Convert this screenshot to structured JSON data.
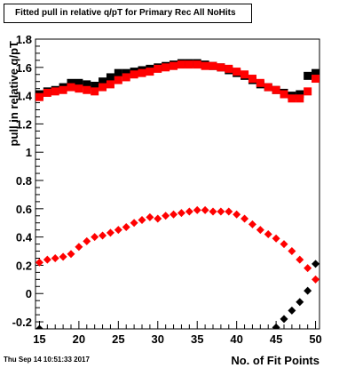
{
  "header": {
    "title": "Fitted pull in relative q/pT for Primary Rec All NoHits"
  },
  "footer": {
    "datestamp": "Thu Sep 14 10:51:33 2017"
  },
  "chart_data": {
    "type": "scatter",
    "xlabel": "No. of Fit Points",
    "ylabel": "pull in relative q/pT",
    "xlim": [
      14.5,
      50.5
    ],
    "ylim": [
      -0.25,
      1.8
    ],
    "x_ticks": [
      15,
      20,
      25,
      30,
      35,
      40,
      45,
      50
    ],
    "y_ticks": [
      -0.2,
      0,
      0.2,
      0.4,
      0.6,
      0.8,
      1,
      1.2,
      1.4,
      1.6,
      1.8
    ],
    "grid": false,
    "series": [
      {
        "name": "",
        "marker": "square",
        "color": "#000000",
        "x": [
          15,
          16,
          17,
          18,
          19,
          20,
          21,
          22,
          23,
          24,
          25,
          26,
          27,
          28,
          29,
          30,
          31,
          32,
          33,
          34,
          35,
          36,
          37,
          38,
          39,
          40,
          41,
          42,
          43,
          44,
          45,
          46,
          47,
          48,
          49,
          50
        ],
        "y": [
          1.41,
          1.43,
          1.44,
          1.46,
          1.49,
          1.49,
          1.48,
          1.47,
          1.5,
          1.53,
          1.56,
          1.56,
          1.57,
          1.58,
          1.59,
          1.6,
          1.61,
          1.62,
          1.63,
          1.63,
          1.63,
          1.62,
          1.61,
          1.6,
          1.58,
          1.56,
          1.54,
          1.51,
          1.48,
          1.46,
          1.44,
          1.42,
          1.4,
          1.41,
          1.54,
          1.56
        ]
      },
      {
        "name": "",
        "marker": "square",
        "color": "#ff0000",
        "x": [
          15,
          16,
          17,
          18,
          19,
          20,
          21,
          22,
          23,
          24,
          25,
          26,
          27,
          28,
          29,
          30,
          31,
          32,
          33,
          34,
          35,
          36,
          37,
          38,
          39,
          40,
          41,
          42,
          43,
          44,
          45,
          46,
          47,
          48,
          49,
          50
        ],
        "y": [
          1.39,
          1.42,
          1.43,
          1.44,
          1.46,
          1.45,
          1.44,
          1.43,
          1.46,
          1.48,
          1.51,
          1.53,
          1.55,
          1.56,
          1.57,
          1.59,
          1.6,
          1.61,
          1.62,
          1.62,
          1.62,
          1.61,
          1.61,
          1.6,
          1.59,
          1.57,
          1.55,
          1.52,
          1.49,
          1.46,
          1.44,
          1.41,
          1.38,
          1.38,
          1.43,
          1.52
        ]
      },
      {
        "name": "",
        "marker": "diamond",
        "color": "#000000",
        "x": [
          15,
          16,
          45,
          46,
          47,
          48,
          49,
          50
        ],
        "y": [
          -0.25,
          -0.27,
          -0.24,
          -0.18,
          -0.12,
          -0.06,
          0.02,
          0.21
        ]
      },
      {
        "name": "",
        "marker": "diamond",
        "color": "#ff0000",
        "x": [
          15,
          16,
          17,
          18,
          19,
          20,
          21,
          22,
          23,
          24,
          25,
          26,
          27,
          28,
          29,
          30,
          31,
          32,
          33,
          34,
          35,
          36,
          37,
          38,
          39,
          40,
          41,
          42,
          43,
          44,
          45,
          46,
          47,
          48,
          49,
          50
        ],
        "y": [
          0.22,
          0.24,
          0.25,
          0.26,
          0.28,
          0.33,
          0.37,
          0.4,
          0.41,
          0.43,
          0.45,
          0.47,
          0.5,
          0.52,
          0.54,
          0.53,
          0.55,
          0.56,
          0.57,
          0.58,
          0.59,
          0.59,
          0.58,
          0.58,
          0.58,
          0.56,
          0.53,
          0.49,
          0.45,
          0.42,
          0.39,
          0.35,
          0.3,
          0.24,
          0.18,
          0.1
        ]
      }
    ]
  }
}
